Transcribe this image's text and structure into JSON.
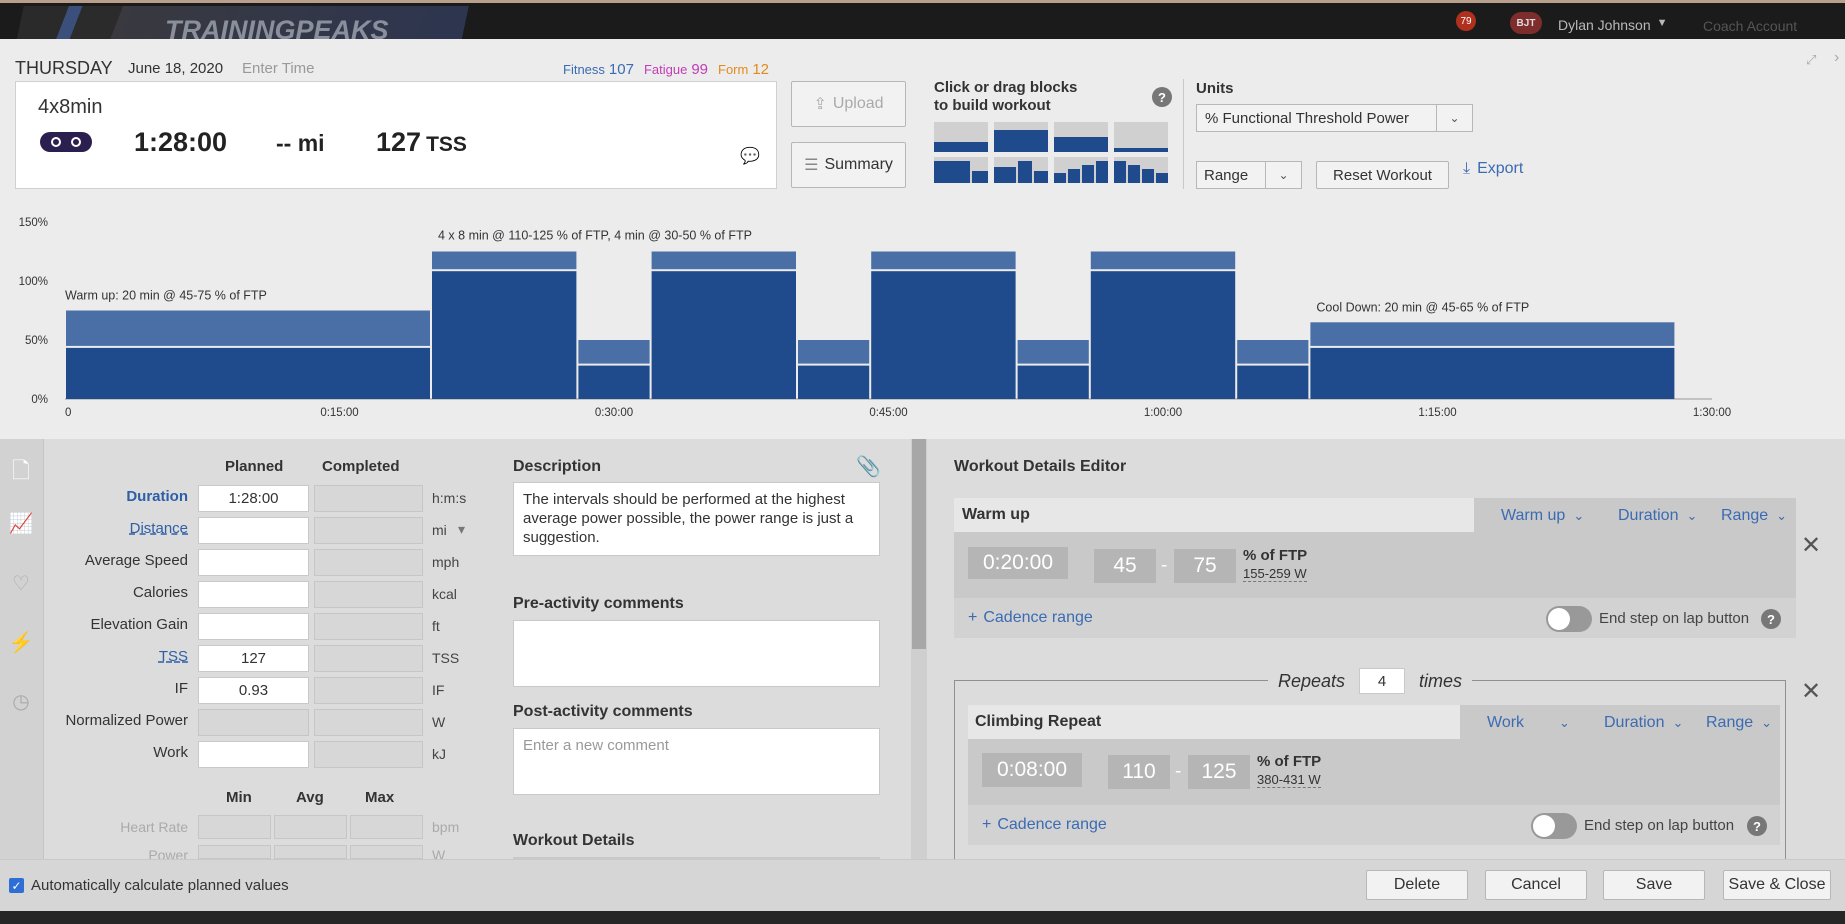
{
  "app": {
    "logo": "TRAININGPEAKS",
    "notif_count": "79",
    "avatar_initials": "BJT",
    "user": "Dylan Johnson",
    "coach_account": "Coach Account"
  },
  "header": {
    "day": "THURSDAY",
    "date": "June 18, 2020",
    "time_placeholder": "Enter Time",
    "fitness_label": "Fitness",
    "fitness_value": "107",
    "fatigue_label": "Fatigue",
    "fatigue_value": "99",
    "form_label": "Form",
    "form_value": "12"
  },
  "workout": {
    "title": "4x8min",
    "duration": "1:28:00",
    "distance": "-- mi",
    "tss_value": "127",
    "tss_unit": "TSS"
  },
  "buttons": {
    "upload": "Upload",
    "summary": "Summary",
    "range": "Range",
    "reset": "Reset Workout",
    "export": "Export",
    "delete": "Delete",
    "cancel": "Cancel",
    "save": "Save",
    "save_close": "Save & Close"
  },
  "builder": {
    "title_line1": "Click or drag blocks",
    "title_line2": "to build workout",
    "help": "?"
  },
  "units": {
    "label": "Units",
    "selected": "% Functional Threshold Power"
  },
  "chart_data": {
    "type": "bar",
    "y_ticks": [
      "150%",
      "100%",
      "50%",
      "0%"
    ],
    "x_ticks": [
      "0",
      "0:15:00",
      "0:30:00",
      "0:45:00",
      "1:00:00",
      "1:15:00",
      "1:30:00"
    ],
    "annotations": [
      "Warm up: 20 min @ 45-75 % of FTP",
      "4 x 8 min @ 110-125 % of FTP, 4 min @ 30-50 % of FTP",
      "Cool Down: 20 min @ 45-65 % of FTP"
    ],
    "x_unit": "minutes",
    "xlim": [
      0,
      90
    ],
    "ylim": [
      0,
      150
    ],
    "segments": [
      {
        "start": 0,
        "duration": 20,
        "low": 45,
        "high": 75
      },
      {
        "start": 20,
        "duration": 8,
        "low": 110,
        "high": 125
      },
      {
        "start": 28,
        "duration": 4,
        "low": 30,
        "high": 50
      },
      {
        "start": 32,
        "duration": 8,
        "low": 110,
        "high": 125
      },
      {
        "start": 40,
        "duration": 4,
        "low": 30,
        "high": 50
      },
      {
        "start": 44,
        "duration": 8,
        "low": 110,
        "high": 125
      },
      {
        "start": 52,
        "duration": 4,
        "low": 30,
        "high": 50
      },
      {
        "start": 56,
        "duration": 8,
        "low": 110,
        "high": 125
      },
      {
        "start": 64,
        "duration": 4,
        "low": 30,
        "high": 50
      },
      {
        "start": 68,
        "duration": 20,
        "low": 45,
        "high": 65
      }
    ]
  },
  "stats": {
    "col_planned": "Planned",
    "col_completed": "Completed",
    "rows": [
      {
        "label": "Duration",
        "planned": "1:28:00",
        "unit": "h:m:s"
      },
      {
        "label": "Distance",
        "planned": "",
        "unit": "mi"
      },
      {
        "label": "Average Speed",
        "planned": "",
        "unit": "mph"
      },
      {
        "label": "Calories",
        "planned": "",
        "unit": "kcal"
      },
      {
        "label": "Elevation Gain",
        "planned": "",
        "unit": "ft"
      },
      {
        "label": "TSS",
        "planned": "127",
        "unit": "TSS"
      },
      {
        "label": "IF",
        "planned": "0.93",
        "unit": "IF"
      },
      {
        "label": "Normalized Power",
        "planned": "",
        "unit": "W"
      },
      {
        "label": "Work",
        "planned": "",
        "unit": "kJ"
      }
    ],
    "col_min": "Min",
    "col_avg": "Avg",
    "col_max": "Max",
    "hr_label": "Heart Rate",
    "hr_unit": "bpm",
    "power_label": "Power",
    "power_unit": "W"
  },
  "description": {
    "label": "Description",
    "text": "The intervals should be performed at the highest average power possible, the power range is just a suggestion.",
    "pre_label": "Pre-activity comments",
    "post_label": "Post-activity comments",
    "post_placeholder": "Enter a new comment",
    "details_label": "Workout Details"
  },
  "editor": {
    "title": "Workout Details Editor",
    "warmup": {
      "name": "Warm up",
      "type": "Warm up",
      "duration_dd": "Duration",
      "range_dd": "Range",
      "time": "0:20:00",
      "low": "45",
      "high": "75",
      "unit": "% of FTP",
      "watts": "155-259 W",
      "cadence": "Cadence range",
      "lap": "End step on lap button"
    },
    "repeats_label": "Repeats",
    "repeats_count": "4",
    "times_label": "times",
    "climb": {
      "name": "Climbing Repeat",
      "type": "Work",
      "duration_dd": "Duration",
      "range_dd": "Range",
      "time": "0:08:00",
      "low": "110",
      "high": "125",
      "unit": "% of FTP",
      "watts": "380-431 W",
      "cadence": "Cadence range",
      "lap": "End step on lap button"
    }
  },
  "footer": {
    "auto_calc": "Automatically calculate planned values"
  }
}
